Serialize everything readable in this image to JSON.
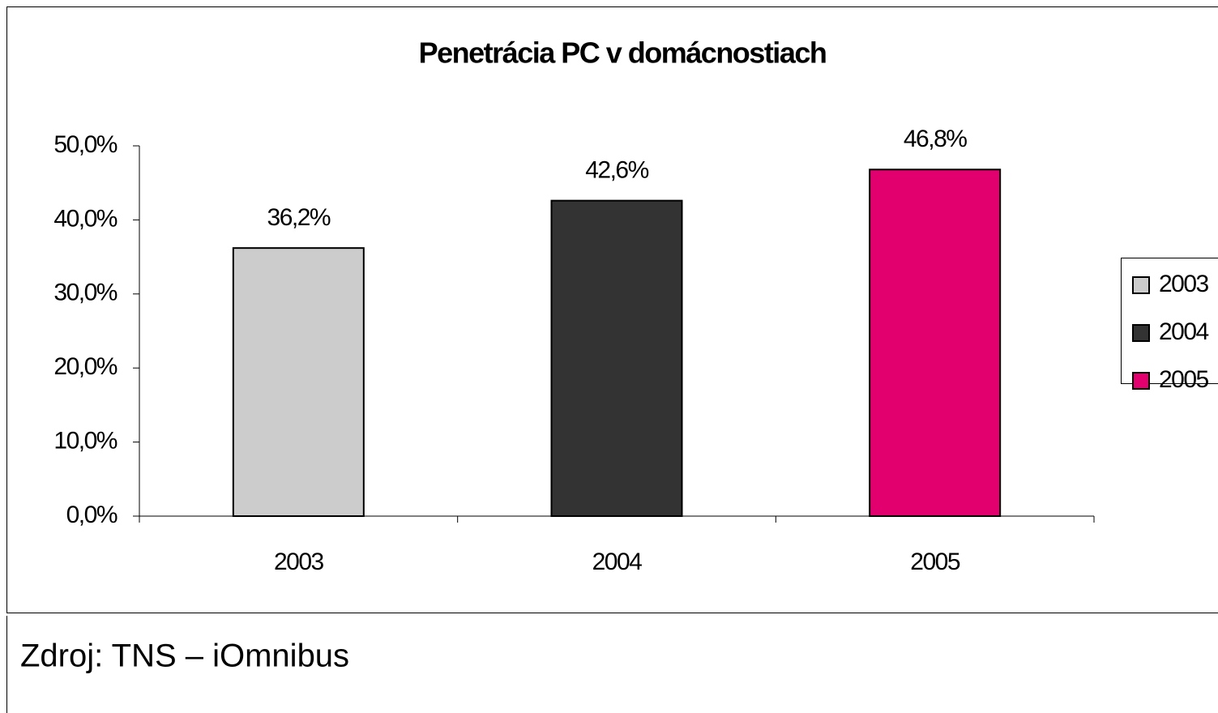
{
  "chart_data": {
    "type": "bar",
    "title": "Penetrácia PC v domácnostiach",
    "categories": [
      "2003",
      "2004",
      "2005"
    ],
    "values": [
      36.2,
      42.6,
      46.8
    ],
    "value_labels": [
      "36,2%",
      "42,6%",
      "46,8%"
    ],
    "colors": [
      "#cccccc",
      "#333333",
      "#e2006e"
    ],
    "ylim": [
      0,
      50
    ],
    "yticks": [
      {
        "value": 0,
        "label": "0,0%"
      },
      {
        "value": 10,
        "label": "10,0%"
      },
      {
        "value": 20,
        "label": "20,0%"
      },
      {
        "value": 30,
        "label": "30,0%"
      },
      {
        "value": 40,
        "label": "40,0%"
      },
      {
        "value": 50,
        "label": "50,0%"
      }
    ],
    "grid": false,
    "legend": "right"
  },
  "source": "Zdroj: TNS – iOmnibus"
}
